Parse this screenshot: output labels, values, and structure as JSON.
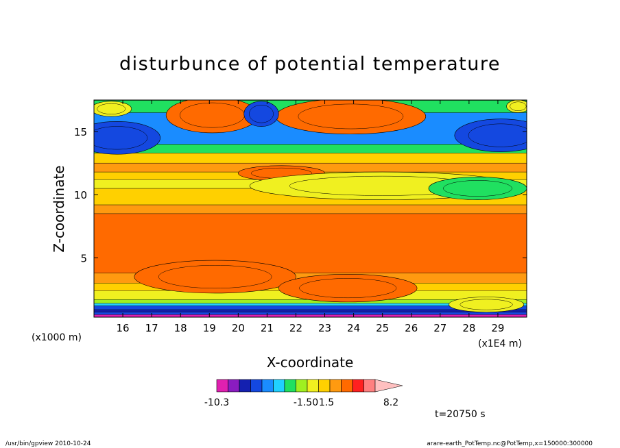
{
  "chart_data": {
    "type": "heatmap",
    "title": "disturbunce of potential temperature",
    "xlabel": "X-coordinate",
    "ylabel": "Z-coordinate",
    "x_unit": "(x1E4 m)",
    "y_unit": "(x1000 m)",
    "xlim": [
      15,
      30
    ],
    "ylim": [
      0.3,
      17.5
    ],
    "x_ticks": [
      "16",
      "17",
      "18",
      "19",
      "20",
      "21",
      "22",
      "23",
      "24",
      "25",
      "26",
      "27",
      "28",
      "29"
    ],
    "y_ticks": [
      "5",
      "10",
      "15"
    ],
    "time_label": "t=20750 s",
    "colorbar": {
      "labels": [
        "-10.3",
        "-1.50",
        "1.5",
        "8.2"
      ],
      "colors": [
        "#e020b0",
        "#8a1cc0",
        "#1420b0",
        "#1448e0",
        "#1a8cff",
        "#20d0ff",
        "#20e060",
        "#a0f020",
        "#f0f020",
        "#ffd000",
        "#ff9a10",
        "#ff6a00",
        "#ff2020",
        "#ff8080",
        "#ffc0c0"
      ]
    },
    "bands": [
      {
        "z": 0.3,
        "level": 0
      },
      {
        "z": 0.5,
        "level": 3
      },
      {
        "z": 0.7,
        "level": 2
      },
      {
        "z": 0.9,
        "level": 3
      },
      {
        "z": 1.2,
        "level": 5
      },
      {
        "z": 1.4,
        "level": 7
      },
      {
        "z": 1.7,
        "level": 8
      },
      {
        "z": 2.4,
        "level": 9
      },
      {
        "z": 3.0,
        "level": 10
      },
      {
        "z": 3.8,
        "level": 11
      },
      {
        "z": 8.5,
        "level": 10
      },
      {
        "z": 9.2,
        "level": 9
      },
      {
        "z": 10.5,
        "level": 8
      },
      {
        "z": 11.2,
        "level": 9
      },
      {
        "z": 11.8,
        "level": 10
      },
      {
        "z": 12.5,
        "level": 9
      },
      {
        "z": 13.3,
        "level": 6
      },
      {
        "z": 14.0,
        "level": 4
      },
      {
        "z": 16.5,
        "level": 6
      },
      {
        "z": 17.5,
        "level": 8
      }
    ],
    "blobs": [
      {
        "x": 21.5,
        "z": 11.7,
        "rx": 1.5,
        "rz": 0.6,
        "level": 11
      },
      {
        "x": 19.2,
        "z": 3.5,
        "rx": 2.8,
        "rz": 1.3,
        "level": 11
      },
      {
        "x": 23.8,
        "z": 2.6,
        "rx": 2.4,
        "rz": 1.1,
        "level": 11
      },
      {
        "x": 28.6,
        "z": 1.3,
        "rx": 1.3,
        "rz": 0.6,
        "level": 8
      },
      {
        "x": 25.0,
        "z": 10.7,
        "rx": 4.6,
        "rz": 1.1,
        "level": 8
      },
      {
        "x": 28.3,
        "z": 10.5,
        "rx": 1.7,
        "rz": 0.9,
        "level": 6
      },
      {
        "x": 15.8,
        "z": 14.5,
        "rx": 1.5,
        "rz": 1.3,
        "level": 3
      },
      {
        "x": 29.1,
        "z": 14.7,
        "rx": 1.6,
        "rz": 1.3,
        "level": 3
      },
      {
        "x": 19.1,
        "z": 16.3,
        "rx": 1.6,
        "rz": 1.4,
        "level": 11
      },
      {
        "x": 23.9,
        "z": 16.2,
        "rx": 2.6,
        "rz": 1.4,
        "level": 11
      },
      {
        "x": 20.8,
        "z": 16.4,
        "rx": 0.6,
        "rz": 1.0,
        "level": 3
      },
      {
        "x": 15.6,
        "z": 16.8,
        "rx": 0.7,
        "rz": 0.6,
        "level": 8
      },
      {
        "x": 29.7,
        "z": 17.0,
        "rx": 0.4,
        "rz": 0.5,
        "level": 8
      }
    ]
  },
  "footer": {
    "left": "/usr/bin/gpview  2010-10-24",
    "right": "arare-earth_PotTemp.nc@PotTemp,x=150000:300000"
  }
}
